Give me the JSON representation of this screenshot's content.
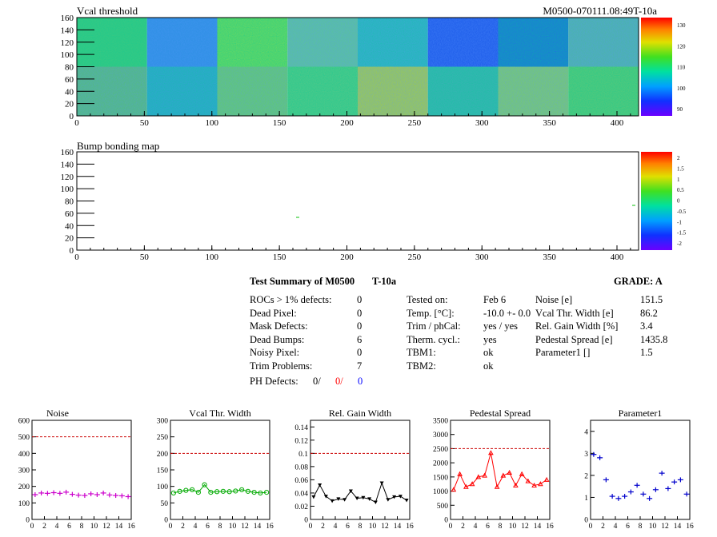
{
  "header": {
    "map1_title": "Vcal threshold",
    "map1_module_label": "M0500-070111.08:49T-10a",
    "map2_title": "Bump bonding map"
  },
  "maps": {
    "x_ticks": [
      "0",
      "50",
      "100",
      "150",
      "200",
      "250",
      "300",
      "350",
      "400"
    ],
    "y_ticks": [
      "0",
      "20",
      "40",
      "60",
      "80",
      "100",
      "120",
      "140",
      "160"
    ],
    "thr_palette_labels": [
      "130",
      "120",
      "110",
      "100",
      "90"
    ],
    "bump_palette_labels": [
      "2",
      "1.5",
      "1",
      "0.5",
      "0",
      "-0.5",
      "-1",
      "-1.5",
      "-2"
    ]
  },
  "summary": {
    "title": "Test Summary of M0500",
    "temp_tag": "T-10a",
    "grade_label": "GRADE:  A",
    "col1": [
      {
        "label": "ROCs > 1% defects:",
        "value": "0"
      },
      {
        "label": "Dead Pixel:",
        "value": "0"
      },
      {
        "label": "Mask Defects:",
        "value": "0"
      },
      {
        "label": "Dead Bumps:",
        "value": "6"
      },
      {
        "label": "Noisy Pixel:",
        "value": "0"
      },
      {
        "label": "Trim Problems:",
        "value": "7"
      }
    ],
    "ph_label": "PH Defects:",
    "ph_values": [
      "0/",
      "0/",
      "0"
    ],
    "ph_colors": [
      "#000000",
      "#ff0000",
      "#0000ff"
    ],
    "col2": [
      {
        "label": "Tested on:",
        "value": "Feb 6"
      },
      {
        "label": "Temp. [°C]:",
        "value": "-10.0 +- 0.0"
      },
      {
        "label": "Trim / phCal:",
        "value": "yes / yes"
      },
      {
        "label": "Therm. cycl.:",
        "value": "yes"
      },
      {
        "label": "TBM1:",
        "value": "ok"
      },
      {
        "label": "TBM2:",
        "value": "ok"
      }
    ],
    "col3": [
      {
        "label": "Noise [e]",
        "value": "151.5"
      },
      {
        "label": "Vcal Thr. Width [e]",
        "value": "86.2"
      },
      {
        "label": "Rel. Gain Width [%]",
        "value": "3.4"
      },
      {
        "label": "Pedestal Spread [e]",
        "value": "1435.8"
      },
      {
        "label": "Parameter1 []",
        "value": "1.5"
      }
    ]
  },
  "chart_data": [
    {
      "type": "scatter",
      "title": "Noise",
      "color": "#cc00cc",
      "marker": "cross",
      "x": [
        0,
        1,
        2,
        3,
        4,
        5,
        6,
        7,
        8,
        9,
        10,
        11,
        12,
        13,
        14,
        15
      ],
      "y": [
        150,
        160,
        158,
        162,
        158,
        165,
        152,
        147,
        145,
        155,
        150,
        160,
        148,
        145,
        143,
        138
      ],
      "ylim": [
        0,
        600
      ],
      "yticks": [
        "0",
        "100",
        "200",
        "300",
        "400",
        "500",
        "600"
      ],
      "xlim": [
        0,
        16
      ],
      "xticks": [
        "0",
        "2",
        "4",
        "6",
        "8",
        "10",
        "12",
        "14",
        "16"
      ],
      "limit": 500,
      "connect": false
    },
    {
      "type": "line",
      "title": "Vcal Thr. Width",
      "color": "#00aa00",
      "marker": "circle",
      "x": [
        0,
        1,
        2,
        3,
        4,
        5,
        6,
        7,
        8,
        9,
        10,
        11,
        12,
        13,
        14,
        15
      ],
      "y": [
        80,
        85,
        88,
        90,
        82,
        105,
        82,
        84,
        85,
        84,
        86,
        90,
        85,
        82,
        80,
        82
      ],
      "ylim": [
        0,
        300
      ],
      "yticks": [
        "0",
        "50",
        "100",
        "150",
        "200",
        "250",
        "300"
      ],
      "xlim": [
        0,
        16
      ],
      "xticks": [
        "0",
        "2",
        "4",
        "6",
        "8",
        "10",
        "12",
        "14",
        "16"
      ],
      "limit": 200,
      "connect": true
    },
    {
      "type": "line",
      "title": "Rel. Gain Width",
      "color": "#000000",
      "marker": "triangle-down",
      "x": [
        0,
        1,
        2,
        3,
        4,
        5,
        6,
        7,
        8,
        9,
        10,
        11,
        12,
        13,
        14,
        15
      ],
      "y": [
        0.034,
        0.052,
        0.035,
        0.028,
        0.031,
        0.03,
        0.043,
        0.032,
        0.033,
        0.031,
        0.026,
        0.055,
        0.03,
        0.034,
        0.035,
        0.029
      ],
      "ylim": [
        0,
        0.15
      ],
      "yticks": [
        "0",
        "0.02",
        "0.04",
        "0.06",
        "0.08",
        "0.1",
        "0.12",
        "0.14"
      ],
      "xlim": [
        0,
        16
      ],
      "xticks": [
        "0",
        "2",
        "4",
        "6",
        "8",
        "10",
        "12",
        "14",
        "16"
      ],
      "limit": 0.1,
      "connect": true
    },
    {
      "type": "line",
      "title": "Pedestal Spread",
      "color": "#ff0000",
      "marker": "triangle-up",
      "x": [
        0,
        1,
        2,
        3,
        4,
        5,
        6,
        7,
        8,
        9,
        10,
        11,
        12,
        13,
        14,
        15
      ],
      "y": [
        1050,
        1600,
        1150,
        1250,
        1500,
        1550,
        2350,
        1150,
        1550,
        1650,
        1200,
        1600,
        1350,
        1200,
        1250,
        1400
      ],
      "ylim": [
        0,
        3500
      ],
      "yticks": [
        "0",
        "500",
        "1000",
        "1500",
        "2000",
        "2500",
        "3000",
        "3500"
      ],
      "xlim": [
        0,
        16
      ],
      "xticks": [
        "0",
        "2",
        "4",
        "6",
        "8",
        "10",
        "12",
        "14",
        "16"
      ],
      "limit": 2500,
      "connect": true
    },
    {
      "type": "scatter",
      "title": "Parameter1",
      "color": "#0000cc",
      "marker": "cross",
      "x": [
        0,
        1,
        2,
        3,
        4,
        5,
        6,
        7,
        8,
        9,
        10,
        11,
        12,
        13,
        14,
        15
      ],
      "y": [
        2.95,
        2.8,
        1.8,
        1.05,
        0.95,
        1.05,
        1.25,
        1.55,
        1.15,
        0.95,
        1.35,
        2.1,
        1.4,
        1.7,
        1.8,
        1.15
      ],
      "ylim": [
        0,
        4.5
      ],
      "yticks": [
        "0",
        "1",
        "2",
        "3",
        "4"
      ],
      "xlim": [
        0,
        16
      ],
      "xticks": [
        "0",
        "2",
        "4",
        "6",
        "8",
        "10",
        "12",
        "14",
        "16"
      ],
      "limit": null,
      "connect": false
    }
  ]
}
